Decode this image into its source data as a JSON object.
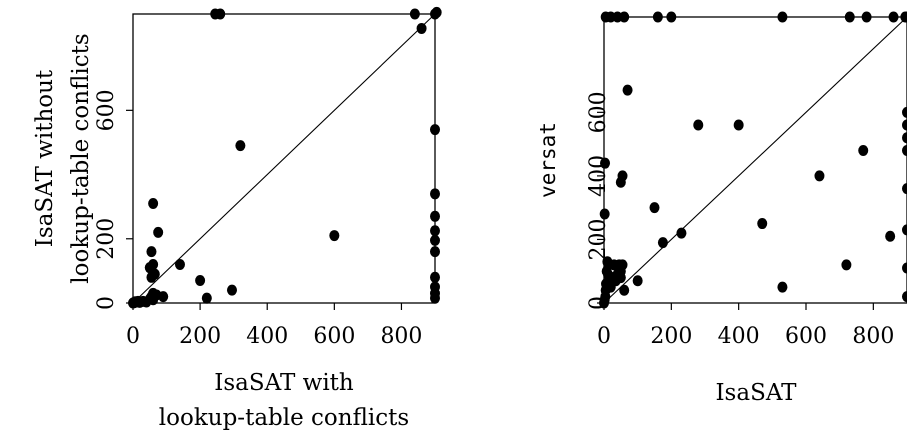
{
  "chart_data": [
    {
      "type": "scatter",
      "title": "",
      "xlabel": [
        "IsaSAT with",
        "lookup-table conflicts"
      ],
      "ylabel": [
        "IsaSAT without",
        "lookup-table conflicts"
      ],
      "xlim": [
        0,
        900
      ],
      "ylim": [
        0,
        900
      ],
      "xticks": [
        0,
        200,
        400,
        600,
        800
      ],
      "yticks": [
        0,
        200,
        600
      ],
      "diagonal": true,
      "points": [
        [
          0,
          0
        ],
        [
          3,
          1
        ],
        [
          5,
          2
        ],
        [
          7,
          4
        ],
        [
          10,
          3
        ],
        [
          15,
          5
        ],
        [
          20,
          2
        ],
        [
          30,
          5
        ],
        [
          40,
          3
        ],
        [
          50,
          12
        ],
        [
          55,
          20
        ],
        [
          60,
          30
        ],
        [
          60,
          10
        ],
        [
          55,
          80
        ],
        [
          65,
          90
        ],
        [
          50,
          110
        ],
        [
          60,
          120
        ],
        [
          55,
          160
        ],
        [
          60,
          310
        ],
        [
          75,
          220
        ],
        [
          70,
          25
        ],
        [
          90,
          20
        ],
        [
          140,
          120
        ],
        [
          200,
          70
        ],
        [
          220,
          15
        ],
        [
          245,
          900
        ],
        [
          260,
          900
        ],
        [
          295,
          40
        ],
        [
          320,
          490
        ],
        [
          600,
          210
        ],
        [
          840,
          900
        ],
        [
          860,
          855
        ],
        [
          900,
          900
        ],
        [
          905,
          905
        ],
        [
          900,
          540
        ],
        [
          900,
          340
        ],
        [
          900,
          270
        ],
        [
          900,
          225
        ],
        [
          900,
          195
        ],
        [
          900,
          160
        ],
        [
          900,
          80
        ],
        [
          900,
          50
        ],
        [
          900,
          30
        ],
        [
          900,
          15
        ]
      ]
    },
    {
      "type": "scatter",
      "title": "",
      "xlabel": "IsaSAT",
      "ylabel": "versat",
      "xlim": [
        0,
        900
      ],
      "ylim": [
        0,
        900
      ],
      "xticks": [
        0,
        200,
        400,
        600,
        800
      ],
      "yticks": [
        0,
        200,
        400,
        600
      ],
      "diagonal": true,
      "points": [
        [
          0,
          0
        ],
        [
          2,
          10
        ],
        [
          4,
          20
        ],
        [
          5,
          40
        ],
        [
          6,
          60
        ],
        [
          8,
          100
        ],
        [
          10,
          130
        ],
        [
          12,
          90
        ],
        [
          15,
          60
        ],
        [
          20,
          50
        ],
        [
          25,
          80
        ],
        [
          30,
          120
        ],
        [
          35,
          70
        ],
        [
          40,
          90
        ],
        [
          45,
          120
        ],
        [
          50,
          100
        ],
        [
          55,
          120
        ],
        [
          60,
          40
        ],
        [
          50,
          80
        ],
        [
          2,
          280
        ],
        [
          3,
          440
        ],
        [
          5,
          900
        ],
        [
          20,
          900
        ],
        [
          40,
          900
        ],
        [
          60,
          900
        ],
        [
          50,
          380
        ],
        [
          55,
          400
        ],
        [
          70,
          670
        ],
        [
          100,
          70
        ],
        [
          150,
          300
        ],
        [
          160,
          900
        ],
        [
          175,
          190
        ],
        [
          200,
          900
        ],
        [
          230,
          220
        ],
        [
          280,
          560
        ],
        [
          400,
          560
        ],
        [
          470,
          250
        ],
        [
          530,
          900
        ],
        [
          530,
          50
        ],
        [
          640,
          400
        ],
        [
          720,
          120
        ],
        [
          730,
          900
        ],
        [
          770,
          480
        ],
        [
          780,
          900
        ],
        [
          850,
          210
        ],
        [
          860,
          900
        ],
        [
          895,
          900
        ],
        [
          900,
          900
        ],
        [
          900,
          600
        ],
        [
          900,
          560
        ],
        [
          900,
          520
        ],
        [
          900,
          480
        ],
        [
          900,
          360
        ],
        [
          900,
          230
        ],
        [
          900,
          110
        ],
        [
          900,
          20
        ]
      ]
    }
  ]
}
